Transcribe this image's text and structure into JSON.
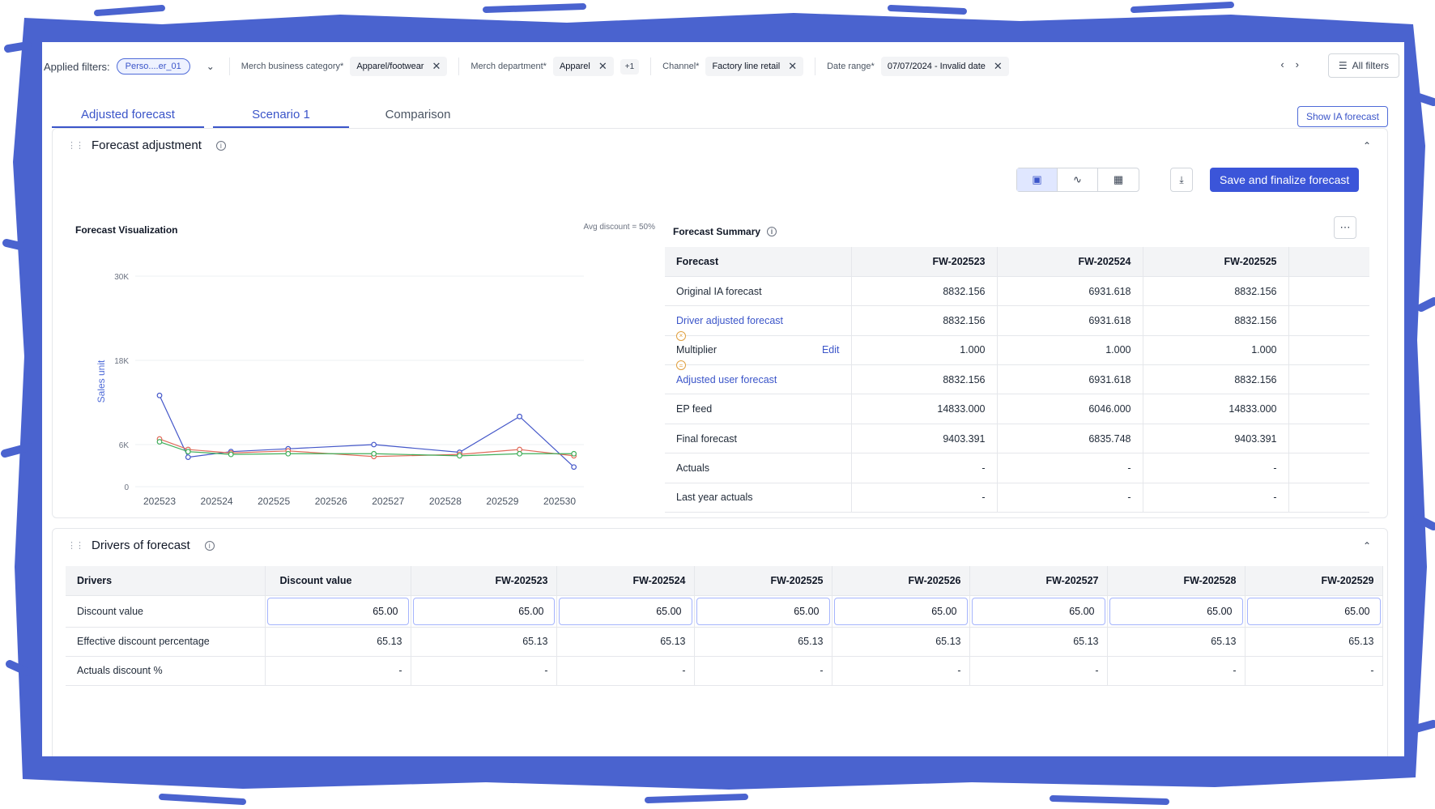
{
  "filters": {
    "label": "Applied filters:",
    "person": "Perso....er_01",
    "items": [
      {
        "name": "Merch business category*",
        "value": "Apparel/footwear"
      },
      {
        "name": "Merch department*",
        "value": "Apparel",
        "extra": "+1"
      },
      {
        "name": "Channel*",
        "value": "Factory line retail"
      },
      {
        "name": "Date range*",
        "value": "07/07/2024 - Invalid date"
      }
    ],
    "all_filters": "All filters"
  },
  "tabs": [
    {
      "label": "Adjusted forecast",
      "active": true
    },
    {
      "label": "Scenario 1",
      "active": true
    },
    {
      "label": "Comparison",
      "active": false
    }
  ],
  "show_ia": "Show IA forecast",
  "forecast_adjustment": {
    "title": "Forecast adjustment",
    "save_label": "Save and finalize forecast",
    "view_icons": [
      "card-view-icon",
      "line-chart-icon",
      "table-icon"
    ],
    "download_icon": "download-icon"
  },
  "chart_data": {
    "type": "line",
    "title": "Forecast Visualization",
    "annotation": "Avg discount = 50%",
    "ylabel": "Sales unit",
    "xlabel": "",
    "categories": [
      "202523",
      "202524",
      "202525",
      "202526",
      "202527",
      "202528",
      "202529",
      "202530"
    ],
    "ylim": [
      0,
      30000
    ],
    "yticks": [
      0,
      6000,
      18000,
      30000
    ],
    "ytick_labels": [
      "0",
      "6K",
      "18K",
      "30K"
    ],
    "grid": true,
    "series": [
      {
        "color": "#4457c9",
        "points": [
          [
            0,
            13000
          ],
          [
            0.5,
            4200
          ],
          [
            1.25,
            5000
          ],
          [
            2.25,
            5400
          ],
          [
            3.75,
            6000
          ],
          [
            5.25,
            4900
          ],
          [
            6.3,
            10000
          ],
          [
            7.25,
            2800
          ]
        ]
      },
      {
        "color": "#e06a5a",
        "points": [
          [
            0,
            6800
          ],
          [
            0.5,
            5300
          ],
          [
            1.25,
            4800
          ],
          [
            2.25,
            5100
          ],
          [
            3.75,
            4300
          ],
          [
            5.25,
            4600
          ],
          [
            6.3,
            5300
          ],
          [
            7.25,
            4400
          ]
        ]
      },
      {
        "color": "#3fae5a",
        "points": [
          [
            0,
            6400
          ],
          [
            0.5,
            5000
          ],
          [
            1.25,
            4600
          ],
          [
            2.25,
            4700
          ],
          [
            3.75,
            4700
          ],
          [
            5.25,
            4400
          ],
          [
            6.3,
            4700
          ],
          [
            7.25,
            4700
          ]
        ]
      }
    ]
  },
  "summary": {
    "title": "Forecast Summary",
    "headers": [
      "Forecast",
      "FW-202523",
      "FW-202524",
      "FW-202525"
    ],
    "edit_label": "Edit",
    "rows": [
      {
        "label": "Original IA forecast",
        "values": [
          "8832.156",
          "6931.618",
          "8832.156"
        ]
      },
      {
        "label": "Driver adjusted forecast",
        "values": [
          "8832.156",
          "6931.618",
          "8832.156"
        ],
        "link": true
      },
      {
        "label": "Multiplier",
        "values": [
          "1.000",
          "1.000",
          "1.000"
        ]
      },
      {
        "label": "Adjusted user forecast",
        "values": [
          "8832.156",
          "6931.618",
          "8832.156"
        ],
        "link": true
      },
      {
        "label": "EP feed",
        "values": [
          "14833.000",
          "6046.000",
          "14833.000"
        ]
      },
      {
        "label": "Final forecast",
        "values": [
          "9403.391",
          "6835.748",
          "9403.391"
        ]
      },
      {
        "label": "Actuals",
        "values": [
          "-",
          "-",
          "-"
        ]
      },
      {
        "label": "Last year actuals",
        "values": [
          "-",
          "-",
          "-"
        ]
      }
    ]
  },
  "drivers": {
    "title": "Drivers of forecast",
    "headers": [
      "Drivers",
      "Discount value",
      "FW-202523",
      "FW-202524",
      "FW-202525",
      "FW-202526",
      "FW-202527",
      "FW-202528",
      "FW-202529"
    ],
    "rows": [
      {
        "label": "Discount value",
        "values": [
          "65.00",
          "65.00",
          "65.00",
          "65.00",
          "65.00",
          "65.00",
          "65.00",
          "65.00"
        ],
        "input": true
      },
      {
        "label": "Effective discount percentage",
        "values": [
          "65.13",
          "65.13",
          "65.13",
          "65.13",
          "65.13",
          "65.13",
          "65.13",
          "65.13"
        ]
      },
      {
        "label": "Actuals discount %",
        "values": [
          "-",
          "-",
          "-",
          "-",
          "-",
          "-",
          "-",
          "-"
        ]
      }
    ]
  }
}
